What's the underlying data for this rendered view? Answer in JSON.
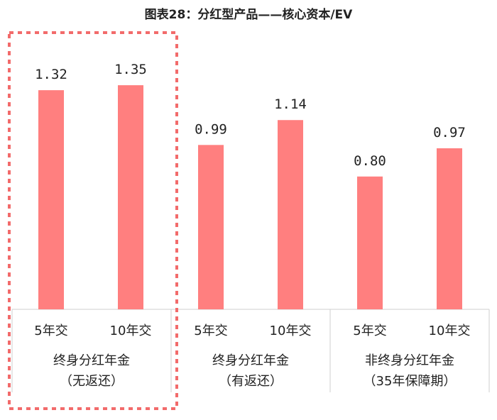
{
  "chart_data": {
    "type": "bar",
    "title": "图表28：分红型产品——核心资本/EV",
    "bar_color": "#FF7F7F",
    "highlight_color": "#F26B6B",
    "ylim": [
      0,
      1.6
    ],
    "groups": [
      {
        "label_line1": "终身分红年金",
        "label_line2": "（无返还）",
        "highlighted": true,
        "bars": [
          {
            "category": "5年交",
            "value": 1.32,
            "label": "1.32"
          },
          {
            "category": "10年交",
            "value": 1.35,
            "label": "1.35"
          }
        ]
      },
      {
        "label_line1": "终身分红年金",
        "label_line2": "（有返还）",
        "highlighted": false,
        "bars": [
          {
            "category": "5年交",
            "value": 0.99,
            "label": "0.99"
          },
          {
            "category": "10年交",
            "value": 1.14,
            "label": "1.14"
          }
        ]
      },
      {
        "label_line1": "非终身分红年金",
        "label_line2": "（35年保障期）",
        "highlighted": false,
        "bars": [
          {
            "category": "5年交",
            "value": 0.8,
            "label": "0.80"
          },
          {
            "category": "10年交",
            "value": 0.97,
            "label": "0.97"
          }
        ]
      }
    ]
  }
}
